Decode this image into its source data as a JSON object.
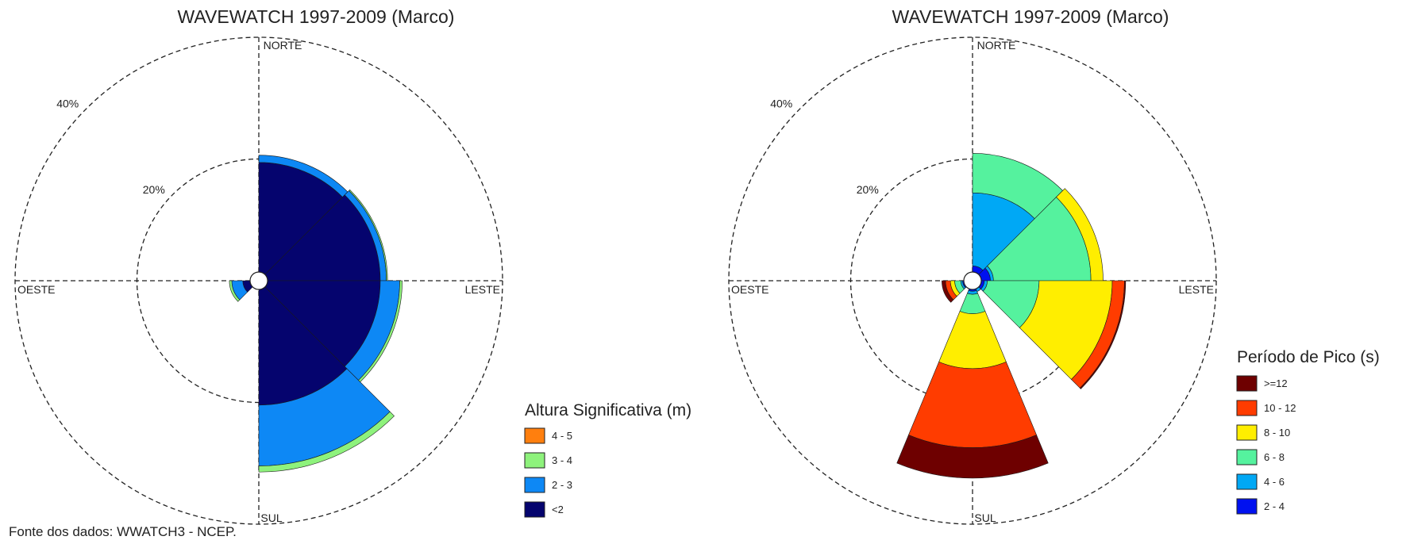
{
  "source": "Fonte dos dados: WWATCH3 - NCEP.",
  "chart_data": [
    {
      "type": "wind-rose",
      "title": "WAVEWATCH 1997-2009 (Marco)",
      "direction_labels": {
        "north": "NORTE",
        "east": "LESTE",
        "south": "SUL",
        "west": "OESTE"
      },
      "ring_labels": [
        "20%",
        "40%"
      ],
      "legend_title": "Altura Significativa (m)",
      "legend_placement": "right",
      "series": [
        {
          "name": "4 - 5",
          "color": "#ff7f0e"
        },
        {
          "name": "3 - 4",
          "color": "#8ef27c"
        },
        {
          "name": "2 - 3",
          "color": "#0d88f5"
        },
        {
          "name": "<2",
          "color": "#05046e"
        }
      ],
      "bin_order_from_center": [
        "<2",
        "2 - 3",
        "3 - 4",
        "4 - 5"
      ],
      "sector_width_deg": 45,
      "sectors": [
        {
          "direction_deg": 22.5,
          "values": {
            "<2": 18.0,
            "2 - 3": 1.2,
            "3 - 4": 0.0,
            "4 - 5": 0.0
          }
        },
        {
          "direction_deg": 67.5,
          "values": {
            "<2": 18.5,
            "2 - 3": 1.0,
            "3 - 4": 0.2,
            "4 - 5": 0.0
          }
        },
        {
          "direction_deg": 112.5,
          "values": {
            "<2": 18.5,
            "2 - 3": 3.2,
            "3 - 4": 0.4,
            "4 - 5": 0.0
          }
        },
        {
          "direction_deg": 157.5,
          "values": {
            "<2": 19.0,
            "2 - 3": 10.0,
            "3 - 4": 1.0,
            "4 - 5": 0.0
          }
        },
        {
          "direction_deg": 202.5,
          "values": {
            "<2": 0.0,
            "2 - 3": 0.0,
            "3 - 4": 0.0,
            "4 - 5": 0.0
          }
        },
        {
          "direction_deg": 247.5,
          "values": {
            "<2": 1.2,
            "2 - 3": 1.8,
            "3 - 4": 0.4,
            "4 - 5": 0.0
          }
        },
        {
          "direction_deg": 292.5,
          "values": {
            "<2": 0.0,
            "2 - 3": 0.0,
            "3 - 4": 0.0,
            "4 - 5": 0.0
          }
        },
        {
          "direction_deg": 337.5,
          "values": {
            "<2": 0.0,
            "2 - 3": 0.0,
            "3 - 4": 0.0,
            "4 - 5": 0.0
          }
        }
      ],
      "radial_max": 40
    },
    {
      "type": "wind-rose",
      "title": "WAVEWATCH 1997-2009 (Marco)",
      "direction_labels": {
        "north": "NORTE",
        "east": "LESTE",
        "south": "SUL",
        "west": "OESTE"
      },
      "ring_labels": [
        "20%",
        "40%"
      ],
      "legend_title": "Período de Pico (s)",
      "legend_placement": "right",
      "series": [
        {
          "name": ">=12",
          "color": "#6e0000"
        },
        {
          "name": "10 - 12",
          "color": "#ff3c00"
        },
        {
          "name": "8 - 10",
          "color": "#ffee00"
        },
        {
          "name": "6 - 8",
          "color": "#55f29e"
        },
        {
          "name": "4 - 6",
          "color": "#00a8f5"
        },
        {
          "name": "2 - 4",
          "color": "#0011f0"
        }
      ],
      "bin_order_from_center": [
        "2 - 4",
        "4 - 6",
        "6 - 8",
        "8 - 10",
        "10 - 12",
        ">=12"
      ],
      "sector_width_deg": 45,
      "sectors": [
        {
          "direction_deg": 22.5,
          "values": {
            "2 - 4": 1.0,
            "4 - 6": 12.0,
            "6 - 8": 6.5,
            "8 - 10": 0.0,
            "10 - 12": 0.0,
            ">=12": 0.0
          }
        },
        {
          "direction_deg": 67.5,
          "values": {
            "2 - 4": 1.5,
            "4 - 6": 0.5,
            "6 - 8": 16.0,
            "8 - 10": 2.0,
            "10 - 12": 0.0,
            ">=12": 0.0
          }
        },
        {
          "direction_deg": 112.5,
          "values": {
            "2 - 4": 0.5,
            "4 - 6": 0.5,
            "6 - 8": 8.5,
            "8 - 10": 12.0,
            "10 - 12": 2.0,
            ">=12": 0.2
          }
        },
        {
          "direction_deg": 157.5,
          "values": {
            "2 - 4": 0.0,
            "4 - 6": 0.5,
            "6 - 8": 0.0,
            "8 - 10": 0.0,
            "10 - 12": 0.0,
            ">=12": 0.0
          }
        },
        {
          "direction_deg": 180.0,
          "values": {
            "2 - 4": 0.3,
            "4 - 6": 0.5,
            "6 - 8": 3.2,
            "8 - 10": 9.0,
            "10 - 12": 13.0,
            ">=12": 5.0
          }
        },
        {
          "direction_deg": 247.5,
          "values": {
            "2 - 4": 0.2,
            "4 - 6": 0.3,
            "6 - 8": 1.0,
            "8 - 10": 0.7,
            "10 - 12": 0.8,
            ">=12": 0.6
          }
        },
        {
          "direction_deg": 292.5,
          "values": {
            "2 - 4": 0.0,
            "4 - 6": 0.0,
            "6 - 8": 0.0,
            "8 - 10": 0.0,
            "10 - 12": 0.0,
            ">=12": 0.0
          }
        },
        {
          "direction_deg": 337.5,
          "values": {
            "2 - 4": 0.0,
            "4 - 6": 0.0,
            "6 - 8": 0.0,
            "8 - 10": 0.0,
            "10 - 12": 0.0,
            ">=12": 0.0
          }
        }
      ],
      "radial_max": 40
    }
  ]
}
